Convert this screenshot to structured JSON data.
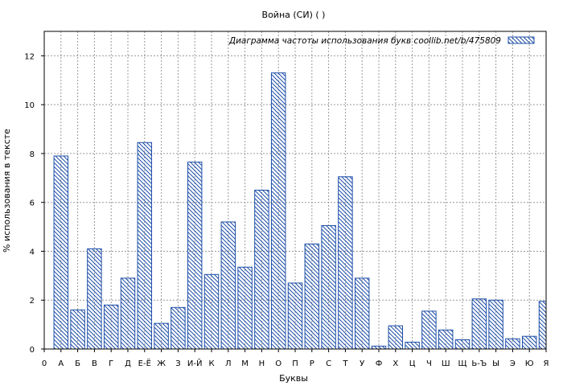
{
  "chart_data": {
    "type": "bar",
    "title": "Война (СИ) ( )",
    "xlabel": "Буквы",
    "ylabel": "% использования в тексте",
    "legend": "Диаграмма частоты использования букв  coollib.net/b/475809",
    "legend_position": "top-right",
    "grid": true,
    "ylim": [
      0,
      13
    ],
    "yticks": [
      0,
      2,
      4,
      6,
      8,
      10,
      12
    ],
    "xticks": [
      "0",
      "А",
      "Б",
      "В",
      "Г",
      "Д",
      "Е-Ё",
      "Ж",
      "З",
      "И-Й",
      "К",
      "Л",
      "М",
      "Н",
      "О",
      "П",
      "Р",
      "С",
      "Т",
      "У",
      "Ф",
      "Х",
      "Ц",
      "Ч",
      "Ш",
      "Щ",
      "Ь-Ъ",
      "Ы",
      "Э",
      "Ю",
      "Я"
    ],
    "categories": [
      "А",
      "Б",
      "В",
      "Г",
      "Д",
      "Е-Ё",
      "Ж",
      "З",
      "И-Й",
      "К",
      "Л",
      "М",
      "Н",
      "О",
      "П",
      "Р",
      "С",
      "Т",
      "У",
      "Ф",
      "Х",
      "Ц",
      "Ч",
      "Ш",
      "Щ",
      "Ь-Ъ",
      "Ы",
      "Э",
      "Ю",
      "Я"
    ],
    "values": [
      7.9,
      1.6,
      4.1,
      1.8,
      2.9,
      8.45,
      1.05,
      1.7,
      7.65,
      3.05,
      5.2,
      3.35,
      6.5,
      11.3,
      2.7,
      4.3,
      5.05,
      7.05,
      2.9,
      0.12,
      0.95,
      0.28,
      1.55,
      0.78,
      0.38,
      2.05,
      2.0,
      0.42,
      0.52,
      1.95
    ],
    "bar_color": "#1f4fa8"
  }
}
